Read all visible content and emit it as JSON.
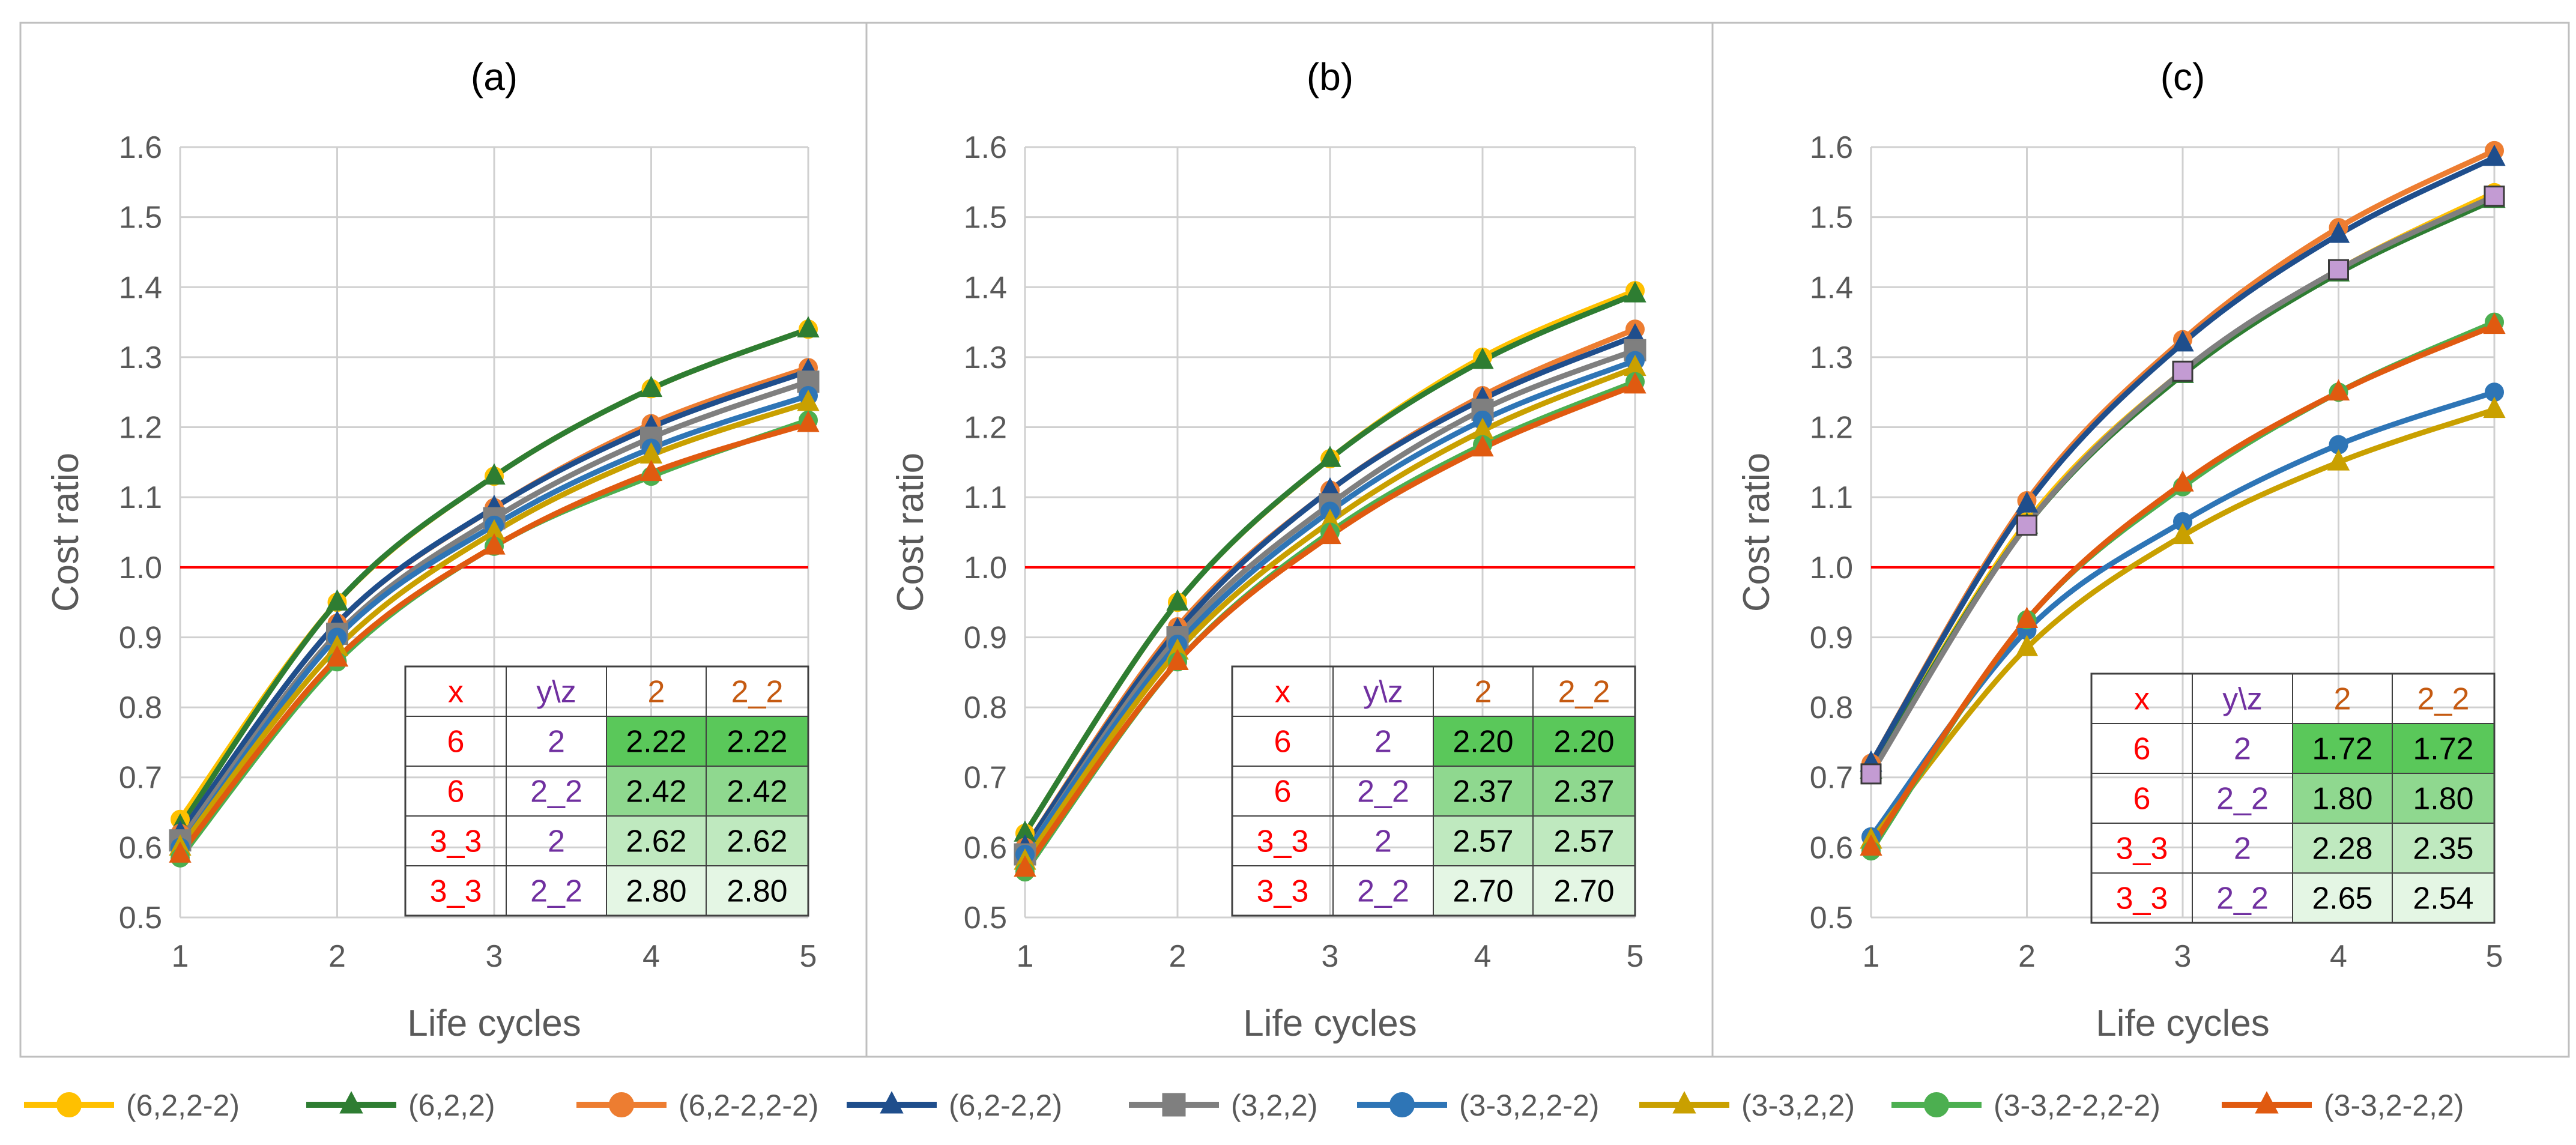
{
  "figure": {
    "background": "#ffffff",
    "frame_color": "#bfbfbf"
  },
  "chart_data": [
    {
      "type": "line",
      "title": "(a)",
      "xlabel": "Life cycles",
      "ylabel": "Cost ratio",
      "x": [
        1,
        2,
        3,
        4,
        5
      ],
      "xlim": [
        1,
        5
      ],
      "ylim": [
        0.5,
        1.6
      ],
      "y_ticks": [
        "0.5",
        "0.6",
        "0.7",
        "0.8",
        "0.9",
        "1.0",
        "1.1",
        "1.2",
        "1.3",
        "1.4",
        "1.5",
        "1.6"
      ],
      "x_ticks": [
        "1",
        "2",
        "3",
        "4",
        "5"
      ],
      "grid": true,
      "reference_line": {
        "y": 1.0,
        "color": "#ff0000"
      },
      "series": [
        {
          "name": "(6,2,2-2)",
          "color": "#ffc000",
          "marker": "circle",
          "values": [
            0.64,
            0.95,
            1.13,
            1.255,
            1.34
          ]
        },
        {
          "name": "(6,2,2)",
          "color": "#2e7d32",
          "marker": "triangle",
          "values": [
            0.63,
            0.95,
            1.13,
            1.255,
            1.34
          ]
        },
        {
          "name": "(6,2-2,2-2)",
          "color": "#ed7d31",
          "marker": "circle",
          "values": [
            0.62,
            0.92,
            1.085,
            1.205,
            1.285
          ]
        },
        {
          "name": "(6,2-2,2)",
          "color": "#1f4e8c",
          "marker": "triangle",
          "values": [
            0.62,
            0.92,
            1.085,
            1.2,
            1.28
          ]
        },
        {
          "name": "(3,2,2)",
          "color": "#7f7f7f",
          "marker": "square",
          "values": [
            0.61,
            0.905,
            1.07,
            1.185,
            1.265
          ]
        },
        {
          "name": "(3-3,2,2-2)",
          "color": "#2e75b6",
          "marker": "circle",
          "values": [
            0.6,
            0.9,
            1.06,
            1.17,
            1.245
          ]
        },
        {
          "name": "(3-3,2,2)",
          "color": "#c9a000",
          "marker": "triangle",
          "values": [
            0.6,
            0.885,
            1.05,
            1.16,
            1.235
          ]
        },
        {
          "name": "(3-3,2-2,2-2)",
          "color": "#4caf50",
          "marker": "circle",
          "values": [
            0.585,
            0.865,
            1.03,
            1.13,
            1.21
          ]
        },
        {
          "name": "(3-3,2-2,2)",
          "color": "#e05a10",
          "marker": "triangle",
          "values": [
            0.59,
            0.87,
            1.03,
            1.135,
            1.205
          ]
        }
      ],
      "table": {
        "header": [
          "x",
          "y\\z",
          "2",
          "2_2"
        ],
        "rows": [
          [
            "6",
            "2",
            "2.22",
            "2.22"
          ],
          [
            "6",
            "2_2",
            "2.42",
            "2.42"
          ],
          [
            "3_3",
            "2",
            "2.62",
            "2.62"
          ],
          [
            "3_3",
            "2_2",
            "2.80",
            "2.80"
          ]
        ]
      }
    },
    {
      "type": "line",
      "title": "(b)",
      "xlabel": "Life cycles",
      "ylabel": "Cost ratio",
      "x": [
        1,
        2,
        3,
        4,
        5
      ],
      "xlim": [
        1,
        5
      ],
      "ylim": [
        0.5,
        1.6
      ],
      "y_ticks": [
        "0.5",
        "0.6",
        "0.7",
        "0.8",
        "0.9",
        "1.0",
        "1.1",
        "1.2",
        "1.3",
        "1.4",
        "1.5",
        "1.6"
      ],
      "x_ticks": [
        "1",
        "2",
        "3",
        "4",
        "5"
      ],
      "grid": true,
      "reference_line": {
        "y": 1.0,
        "color": "#ff0000"
      },
      "series": [
        {
          "name": "(6,2,2-2)",
          "color": "#ffc000",
          "marker": "circle",
          "values": [
            0.62,
            0.95,
            1.155,
            1.3,
            1.395
          ]
        },
        {
          "name": "(6,2,2)",
          "color": "#2e7d32",
          "marker": "triangle",
          "values": [
            0.62,
            0.95,
            1.155,
            1.295,
            1.39
          ]
        },
        {
          "name": "(6,2-2,2-2)",
          "color": "#ed7d31",
          "marker": "circle",
          "values": [
            0.6,
            0.915,
            1.11,
            1.245,
            1.34
          ]
        },
        {
          "name": "(6,2-2,2)",
          "color": "#1f4e8c",
          "marker": "triangle",
          "values": [
            0.6,
            0.91,
            1.11,
            1.24,
            1.33
          ]
        },
        {
          "name": "(3,2,2)",
          "color": "#7f7f7f",
          "marker": "square",
          "values": [
            0.59,
            0.9,
            1.09,
            1.225,
            1.31
          ]
        },
        {
          "name": "(3-3,2,2-2)",
          "color": "#2e75b6",
          "marker": "circle",
          "values": [
            0.59,
            0.89,
            1.08,
            1.21,
            1.295
          ]
        },
        {
          "name": "(3-3,2,2)",
          "color": "#c9a000",
          "marker": "triangle",
          "values": [
            0.58,
            0.88,
            1.065,
            1.195,
            1.285
          ]
        },
        {
          "name": "(3-3,2-2,2-2)",
          "color": "#4caf50",
          "marker": "circle",
          "values": [
            0.565,
            0.865,
            1.05,
            1.175,
            1.265
          ]
        },
        {
          "name": "(3-3,2-2,2)",
          "color": "#e05a10",
          "marker": "triangle",
          "values": [
            0.57,
            0.865,
            1.045,
            1.17,
            1.26
          ]
        }
      ],
      "table": {
        "header": [
          "x",
          "y\\z",
          "2",
          "2_2"
        ],
        "rows": [
          [
            "6",
            "2",
            "2.20",
            "2.20"
          ],
          [
            "6",
            "2_2",
            "2.37",
            "2.37"
          ],
          [
            "3_3",
            "2",
            "2.57",
            "2.57"
          ],
          [
            "3_3",
            "2_2",
            "2.70",
            "2.70"
          ]
        ]
      }
    },
    {
      "type": "line",
      "title": "(c)",
      "xlabel": "Life cycles",
      "ylabel": "Cost ratio",
      "x": [
        1,
        2,
        3,
        4,
        5
      ],
      "xlim": [
        1,
        5
      ],
      "ylim": [
        0.5,
        1.6
      ],
      "y_ticks": [
        "0.5",
        "0.6",
        "0.7",
        "0.8",
        "0.9",
        "1.0",
        "1.1",
        "1.2",
        "1.3",
        "1.4",
        "1.5",
        "1.6"
      ],
      "x_ticks": [
        "1",
        "2",
        "3",
        "4",
        "5"
      ],
      "grid": true,
      "reference_line": {
        "y": 1.0,
        "color": "#ff0000"
      },
      "series": [
        {
          "name": "(6,2,2-2)",
          "color": "#ffc000",
          "marker": "circle",
          "values": [
            0.71,
            1.065,
            1.28,
            1.425,
            1.535
          ]
        },
        {
          "name": "(6,2,2)",
          "color": "#2e7d32",
          "marker": "triangle",
          "values": [
            0.71,
            1.06,
            1.275,
            1.42,
            1.525
          ]
        },
        {
          "name": "(6,2-2,2-2)",
          "color": "#ed7d31",
          "marker": "circle",
          "values": [
            0.72,
            1.095,
            1.325,
            1.485,
            1.595
          ]
        },
        {
          "name": "(6,2-2,2)",
          "color": "#1f4e8c",
          "marker": "triangle",
          "values": [
            0.72,
            1.09,
            1.32,
            1.475,
            1.585
          ]
        },
        {
          "name": "(3,2,2)",
          "color": "#7f7f7f",
          "marker": "square",
          "highlight_color": "#c39bd3",
          "values": [
            0.705,
            1.06,
            1.28,
            1.425,
            1.53
          ]
        },
        {
          "name": "(3-3,2,2-2)",
          "color": "#2e75b6",
          "marker": "circle",
          "values": [
            0.615,
            0.91,
            1.065,
            1.175,
            1.25
          ]
        },
        {
          "name": "(3-3,2,2)",
          "color": "#c9a000",
          "marker": "triangle",
          "values": [
            0.61,
            0.885,
            1.045,
            1.15,
            1.225
          ]
        },
        {
          "name": "(3-3,2-2,2-2)",
          "color": "#4caf50",
          "marker": "circle",
          "values": [
            0.595,
            0.925,
            1.115,
            1.25,
            1.35
          ]
        },
        {
          "name": "(3-3,2-2,2)",
          "color": "#e05a10",
          "marker": "triangle",
          "values": [
            0.6,
            0.925,
            1.12,
            1.25,
            1.345
          ]
        }
      ],
      "table": {
        "header": [
          "x",
          "y\\z",
          "2",
          "2_2"
        ],
        "rows": [
          [
            "6",
            "2",
            "1.72",
            "1.72"
          ],
          [
            "6",
            "2_2",
            "1.80",
            "1.80"
          ],
          [
            "3_3",
            "2",
            "2.28",
            "2.35"
          ],
          [
            "3_3",
            "2_2",
            "2.65",
            "2.54"
          ]
        ]
      }
    }
  ],
  "table_colors": {
    "x_text": "#ff0000",
    "y_text": "#7030a0",
    "header_z_text": "#c55a11",
    "value_text": "#000000",
    "row_fills": [
      "#5ac85a",
      "#8fd88f",
      "#bfe9bf",
      "#e4f6e4"
    ]
  },
  "legend": [
    {
      "label": "(6,2,2-2)",
      "color": "#ffc000",
      "marker": "circle"
    },
    {
      "label": "(6,2,2)",
      "color": "#2e7d32",
      "marker": "triangle"
    },
    {
      "label": "(6,2-2,2-2)",
      "color": "#ed7d31",
      "marker": "circle"
    },
    {
      "label": "(6,2-2,2)",
      "color": "#1f4e8c",
      "marker": "triangle"
    },
    {
      "label": "(3,2,2)",
      "color": "#7f7f7f",
      "marker": "square"
    },
    {
      "label": "(3-3,2,2-2)",
      "color": "#2e75b6",
      "marker": "circle"
    },
    {
      "label": "(3-3,2,2)",
      "color": "#c9a000",
      "marker": "triangle"
    },
    {
      "label": "(3-3,2-2,2-2)",
      "color": "#4caf50",
      "marker": "circle"
    },
    {
      "label": "(3-3,2-2,2)",
      "color": "#e05a10",
      "marker": "triangle"
    }
  ]
}
